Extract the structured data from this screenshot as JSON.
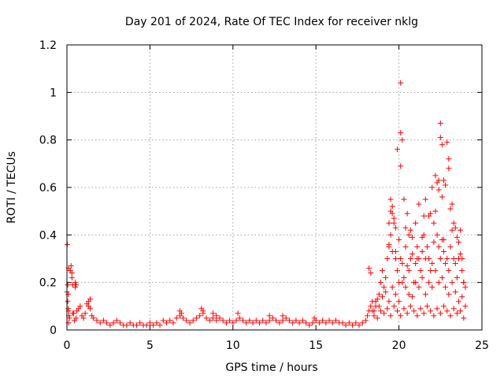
{
  "chart_data": {
    "type": "scatter",
    "title": "Day 201 of 2024, Rate Of TEC Index for receiver nklg",
    "xlabel": "GPS time / hours",
    "ylabel": "ROTI / TECUs",
    "xlim": [
      0,
      25
    ],
    "ylim": [
      0,
      1.2
    ],
    "x_ticks": [
      "0",
      "5",
      "10",
      "15",
      "20",
      "25"
    ],
    "y_ticks": [
      "0",
      "0.2",
      "0.4",
      "0.6",
      "0.8",
      "1",
      "1.2"
    ],
    "grid": true,
    "marker": "+",
    "color": "#ff0000",
    "series": [
      {
        "x": [
          0.0,
          0.02,
          0.05,
          0.08,
          0.1,
          0.12,
          0.15,
          0.2,
          0.25,
          0.3,
          0.35,
          0.4,
          0.45,
          0.5,
          0.55,
          0.6,
          0.7,
          0.8,
          0.9,
          1.0,
          1.1,
          1.2,
          1.3,
          1.4,
          1.5,
          0.05,
          0.08,
          0.1,
          0.3,
          0.35,
          0.5,
          0.55,
          0.1,
          1.3,
          1.4,
          1.6,
          1.8,
          2.0,
          2.2,
          2.4,
          2.6,
          2.8,
          3.0,
          3.2,
          3.4,
          3.6,
          3.8,
          4.0,
          4.2,
          4.4,
          4.6,
          4.8,
          5.0,
          5.2,
          5.4,
          5.6,
          5.8,
          6.0,
          6.2,
          6.4,
          6.6,
          6.8,
          7.0,
          7.2,
          7.4,
          7.6,
          7.8,
          8.0,
          8.2,
          8.4,
          8.6,
          8.8,
          9.0,
          9.2,
          9.4,
          9.6,
          9.8,
          10.0,
          10.2,
          10.4,
          10.6,
          10.8,
          11.0,
          11.2,
          11.4,
          11.6,
          11.8,
          12.0,
          12.2,
          12.4,
          12.6,
          12.8,
          13.0,
          13.2,
          13.4,
          13.6,
          13.8,
          14.0,
          14.2,
          14.4,
          14.6,
          14.8,
          15.0,
          15.2,
          15.4,
          15.6,
          15.8,
          16.0,
          16.2,
          16.4,
          16.6,
          16.8,
          17.0,
          17.2,
          17.4,
          17.6,
          17.8,
          6.8,
          6.9,
          8.1,
          8.2,
          8.8,
          9.0,
          10.3,
          12.2,
          13.0,
          14.9,
          18.0,
          18.1,
          18.2,
          18.3,
          18.4,
          18.5,
          18.6,
          18.7,
          18.8,
          18.9,
          19.0,
          19.1,
          19.2,
          19.3,
          19.4,
          19.5,
          19.6,
          19.7,
          19.8,
          19.9,
          20.0,
          20.1,
          20.2,
          20.3,
          20.4,
          20.5,
          20.6,
          20.7,
          20.8,
          20.9,
          21.0,
          21.1,
          21.2,
          21.3,
          21.4,
          21.5,
          21.6,
          21.7,
          21.8,
          21.9,
          22.0,
          22.1,
          22.2,
          22.3,
          22.4,
          22.5,
          22.6,
          22.7,
          22.8,
          22.9,
          23.0,
          23.1,
          23.2,
          23.3,
          23.4,
          23.5,
          23.6,
          23.7,
          23.8,
          23.9,
          24.0,
          18.4,
          18.6,
          18.8,
          19.0,
          19.2,
          19.4,
          19.6,
          19.8,
          20.0,
          20.2,
          20.4,
          20.6,
          20.8,
          21.0,
          21.2,
          21.4,
          21.6,
          21.8,
          22.0,
          22.2,
          22.4,
          22.6,
          22.8,
          23.0,
          23.2,
          23.4,
          23.6,
          23.8,
          24.0,
          18.5,
          18.7,
          18.9,
          19.1,
          19.3,
          19.5,
          19.7,
          19.9,
          20.1,
          20.3,
          20.5,
          20.7,
          20.9,
          21.1,
          21.3,
          21.5,
          21.7,
          21.9,
          22.1,
          22.3,
          22.5,
          22.7,
          22.9,
          23.1,
          23.3,
          23.5,
          23.7,
          23.9,
          18.2,
          18.3,
          19.4,
          19.5,
          19.5,
          19.6,
          19.7,
          19.8,
          19.9,
          20.1,
          20.1,
          20.1,
          20.2,
          20.3,
          20.5,
          20.6,
          20.7,
          20.8,
          21.0,
          21.2,
          21.5,
          21.6,
          21.8,
          22.0,
          22.2,
          22.3,
          22.4,
          22.4,
          22.5,
          22.5,
          22.6,
          22.6,
          22.7,
          22.8,
          22.9,
          23.0,
          23.1,
          23.2,
          23.3,
          23.4,
          23.5,
          23.6,
          23.7,
          23.8,
          19.4,
          19.6,
          19.8,
          20.0,
          20.4,
          21.1,
          21.4,
          21.9,
          22.1,
          22.7,
          23.0,
          23.9
        ],
        "y": [
          0.16,
          0.36,
          0.19,
          0.15,
          0.08,
          0.06,
          0.05,
          0.25,
          0.27,
          0.22,
          0.19,
          0.07,
          0.04,
          0.18,
          0.19,
          0.08,
          0.09,
          0.1,
          0.06,
          0.05,
          0.07,
          0.11,
          0.12,
          0.09,
          0.06,
          0.12,
          0.09,
          0.26,
          0.24,
          0.07,
          0.2,
          0.05,
          0.03,
          0.1,
          0.13,
          0.05,
          0.04,
          0.03,
          0.04,
          0.03,
          0.02,
          0.03,
          0.04,
          0.03,
          0.02,
          0.02,
          0.03,
          0.02,
          0.02,
          0.03,
          0.02,
          0.02,
          0.03,
          0.02,
          0.03,
          0.02,
          0.04,
          0.03,
          0.04,
          0.03,
          0.05,
          0.06,
          0.05,
          0.04,
          0.03,
          0.04,
          0.05,
          0.06,
          0.07,
          0.05,
          0.04,
          0.05,
          0.04,
          0.05,
          0.04,
          0.03,
          0.04,
          0.03,
          0.04,
          0.05,
          0.04,
          0.03,
          0.04,
          0.03,
          0.04,
          0.03,
          0.04,
          0.03,
          0.04,
          0.05,
          0.04,
          0.03,
          0.04,
          0.05,
          0.04,
          0.03,
          0.04,
          0.03,
          0.04,
          0.03,
          0.02,
          0.03,
          0.04,
          0.03,
          0.04,
          0.03,
          0.04,
          0.03,
          0.04,
          0.03,
          0.03,
          0.02,
          0.03,
          0.02,
          0.03,
          0.02,
          0.03,
          0.08,
          0.07,
          0.09,
          0.08,
          0.07,
          0.06,
          0.07,
          0.06,
          0.06,
          0.05,
          0.04,
          0.06,
          0.08,
          0.1,
          0.12,
          0.08,
          0.1,
          0.13,
          0.15,
          0.2,
          0.25,
          0.18,
          0.22,
          0.3,
          0.35,
          0.4,
          0.33,
          0.45,
          0.3,
          0.25,
          0.2,
          0.3,
          0.28,
          0.22,
          0.35,
          0.27,
          0.25,
          0.3,
          0.32,
          0.2,
          0.28,
          0.35,
          0.3,
          0.25,
          0.33,
          0.4,
          0.3,
          0.35,
          0.3,
          0.25,
          0.28,
          0.45,
          0.5,
          0.4,
          0.35,
          0.3,
          0.38,
          0.33,
          0.28,
          0.3,
          0.25,
          0.35,
          0.42,
          0.3,
          0.28,
          0.22,
          0.3,
          0.32,
          0.25,
          0.2,
          0.18,
          0.08,
          0.12,
          0.1,
          0.14,
          0.16,
          0.12,
          0.18,
          0.15,
          0.12,
          0.2,
          0.18,
          0.15,
          0.14,
          0.2,
          0.18,
          0.22,
          0.15,
          0.2,
          0.18,
          0.25,
          0.2,
          0.22,
          0.18,
          0.15,
          0.2,
          0.16,
          0.12,
          0.14,
          0.1,
          0.06,
          0.05,
          0.08,
          0.07,
          0.09,
          0.06,
          0.1,
          0.08,
          0.06,
          0.09,
          0.07,
          0.1,
          0.08,
          0.06,
          0.09,
          0.07,
          0.1,
          0.08,
          0.06,
          0.09,
          0.07,
          0.1,
          0.08,
          0.06,
          0.09,
          0.07,
          0.08,
          0.05,
          0.26,
          0.24,
          0.45,
          0.55,
          0.5,
          0.49,
          0.47,
          0.43,
          0.76,
          1.04,
          0.83,
          0.69,
          0.8,
          0.55,
          0.49,
          0.4,
          0.42,
          0.39,
          0.45,
          0.53,
          0.48,
          0.55,
          0.48,
          0.6,
          0.65,
          0.62,
          0.63,
          0.59,
          0.81,
          0.87,
          0.78,
          0.56,
          0.63,
          0.61,
          0.79,
          0.72,
          0.51,
          0.53,
          0.45,
          0.43,
          0.39,
          0.37,
          0.42,
          0.3,
          0.36,
          0.52,
          0.33,
          0.38,
          0.43,
          0.3,
          0.39,
          0.49,
          0.37,
          0.38,
          0.68,
          0.2
        ]
      }
    ]
  }
}
